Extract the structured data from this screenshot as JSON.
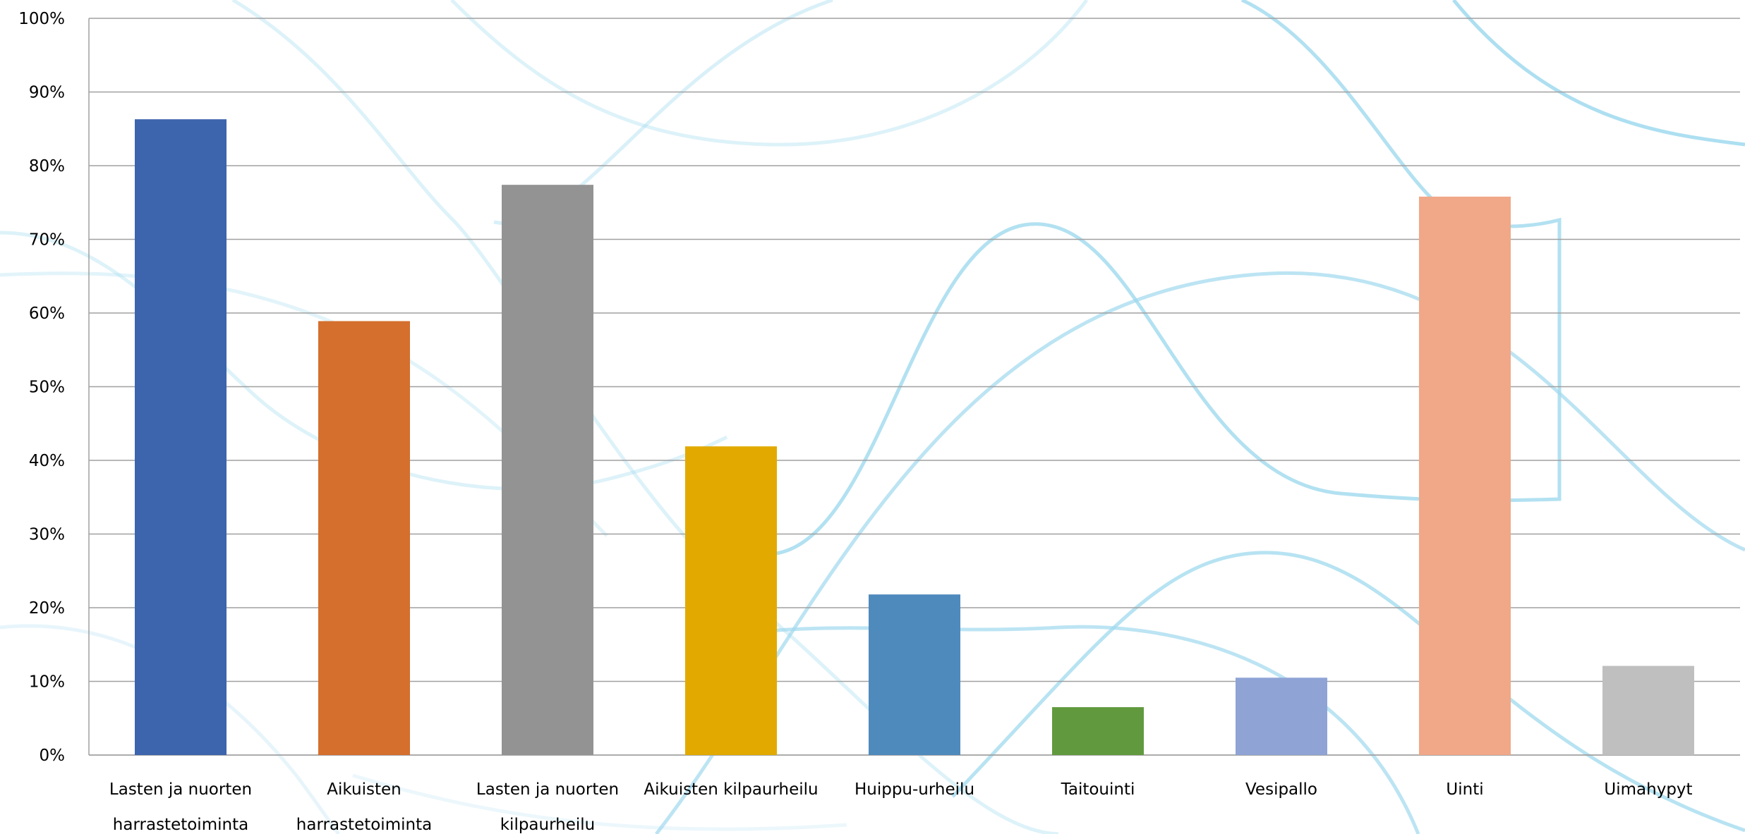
{
  "chart_data": {
    "type": "bar",
    "categories": [
      [
        "Lasten ja nuorten",
        "harrastetoiminta"
      ],
      [
        "Aikuisten",
        "harrastetoiminta"
      ],
      [
        "Lasten ja nuorten",
        "kilpaurheilu"
      ],
      [
        "Aikuisten kilpaurheilu"
      ],
      [
        "Huippu-urheilu"
      ],
      [
        "Taitouinti"
      ],
      [
        "Vesipallo"
      ],
      [
        "Uinti"
      ],
      [
        "Uimahypyt"
      ]
    ],
    "values": [
      86.3,
      58.9,
      77.4,
      41.9,
      21.8,
      6.5,
      10.5,
      75.8,
      12.1
    ],
    "colors": [
      "#3d65ad",
      "#d46f2d",
      "#939393",
      "#e2aa00",
      "#4f8abd",
      "#619a3e",
      "#8fa4d5",
      "#f0a888",
      "#bfbfbf"
    ],
    "ylim": [
      0,
      100
    ],
    "yticks": [
      "0%",
      "10%",
      "20%",
      "30%",
      "40%",
      "50%",
      "60%",
      "70%",
      "80%",
      "90%",
      "100%"
    ],
    "grid": true,
    "legend": "none",
    "gridline_color": "#a0a0a0",
    "background_wave_color": "#9fd9ee"
  }
}
